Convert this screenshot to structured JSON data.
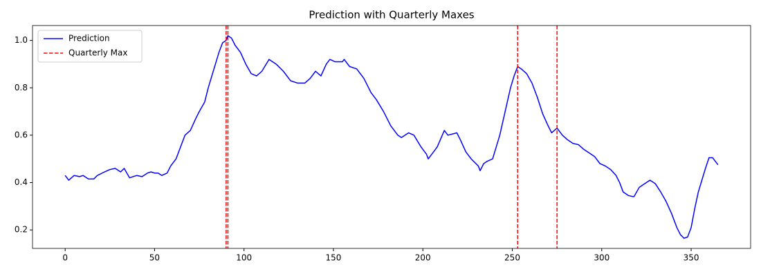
{
  "chart_data": {
    "type": "line",
    "title": "Prediction with Quarterly Maxes",
    "xlim": [
      -18.25,
      383.25
    ],
    "ylim": [
      0.122,
      1.063
    ],
    "xticks": [
      0,
      50,
      100,
      150,
      200,
      250,
      300,
      350
    ],
    "yticks": [
      0.2,
      0.4,
      0.6,
      0.8,
      {
        "value": 1,
        "label": "1.0"
      }
    ],
    "grid": false,
    "legend": "upper left",
    "series": [
      {
        "name": "Prediction",
        "color": "#0000ff",
        "x": [
          0,
          2,
          5,
          8,
          10,
          13,
          16,
          18,
          22,
          25,
          28,
          31,
          33,
          36,
          40,
          43,
          46,
          48,
          50,
          52,
          54,
          57,
          59,
          62,
          65,
          67,
          70,
          73,
          75,
          78,
          80,
          82,
          84,
          86,
          88,
          90,
          91,
          93,
          95,
          98,
          101,
          104,
          107,
          110,
          114,
          118,
          122,
          126,
          130,
          134,
          137,
          140,
          143,
          146,
          148,
          151,
          155,
          156,
          159,
          163,
          167,
          171,
          174,
          178,
          182,
          186,
          188,
          192,
          195,
          199,
          202,
          203,
          205,
          208,
          212,
          214,
          219,
          221,
          224,
          227,
          231,
          232,
          234,
          236,
          239,
          241,
          243,
          246,
          249,
          251,
          253,
          255,
          258,
          261,
          264,
          267,
          270,
          272,
          275,
          278,
          281,
          284,
          287,
          290,
          293,
          296,
          299,
          302,
          305,
          308,
          310,
          312,
          315,
          318,
          321,
          324,
          327,
          330,
          333,
          336,
          339,
          342,
          344,
          346,
          348,
          350,
          352,
          354,
          356,
          358,
          360,
          362,
          365
        ],
        "values": [
          0.43,
          0.41,
          0.43,
          0.425,
          0.43,
          0.415,
          0.415,
          0.43,
          0.445,
          0.455,
          0.46,
          0.445,
          0.46,
          0.42,
          0.43,
          0.425,
          0.44,
          0.445,
          0.44,
          0.44,
          0.43,
          0.44,
          0.47,
          0.5,
          0.56,
          0.6,
          0.62,
          0.67,
          0.7,
          0.74,
          0.8,
          0.85,
          0.9,
          0.95,
          0.99,
          1.0,
          1.02,
          1.01,
          0.98,
          0.95,
          0.9,
          0.86,
          0.85,
          0.87,
          0.92,
          0.9,
          0.87,
          0.83,
          0.82,
          0.82,
          0.84,
          0.87,
          0.85,
          0.9,
          0.92,
          0.91,
          0.91,
          0.92,
          0.89,
          0.88,
          0.84,
          0.78,
          0.75,
          0.7,
          0.64,
          0.6,
          0.59,
          0.61,
          0.6,
          0.55,
          0.52,
          0.5,
          0.52,
          0.55,
          0.62,
          0.6,
          0.61,
          0.58,
          0.53,
          0.5,
          0.47,
          0.45,
          0.48,
          0.49,
          0.5,
          0.55,
          0.6,
          0.7,
          0.8,
          0.85,
          0.89,
          0.88,
          0.86,
          0.82,
          0.76,
          0.69,
          0.64,
          0.61,
          0.63,
          0.6,
          0.58,
          0.565,
          0.56,
          0.54,
          0.525,
          0.51,
          0.48,
          0.47,
          0.455,
          0.43,
          0.4,
          0.36,
          0.345,
          0.34,
          0.38,
          0.395,
          0.41,
          0.395,
          0.36,
          0.32,
          0.27,
          0.21,
          0.18,
          0.165,
          0.17,
          0.21,
          0.29,
          0.36,
          0.41,
          0.46,
          0.505,
          0.505,
          0.475
        ]
      },
      {
        "name": "Quarterly Max",
        "color": "#ff0000",
        "style": "dashed",
        "x": [
          90,
          91,
          253,
          275
        ]
      }
    ]
  }
}
